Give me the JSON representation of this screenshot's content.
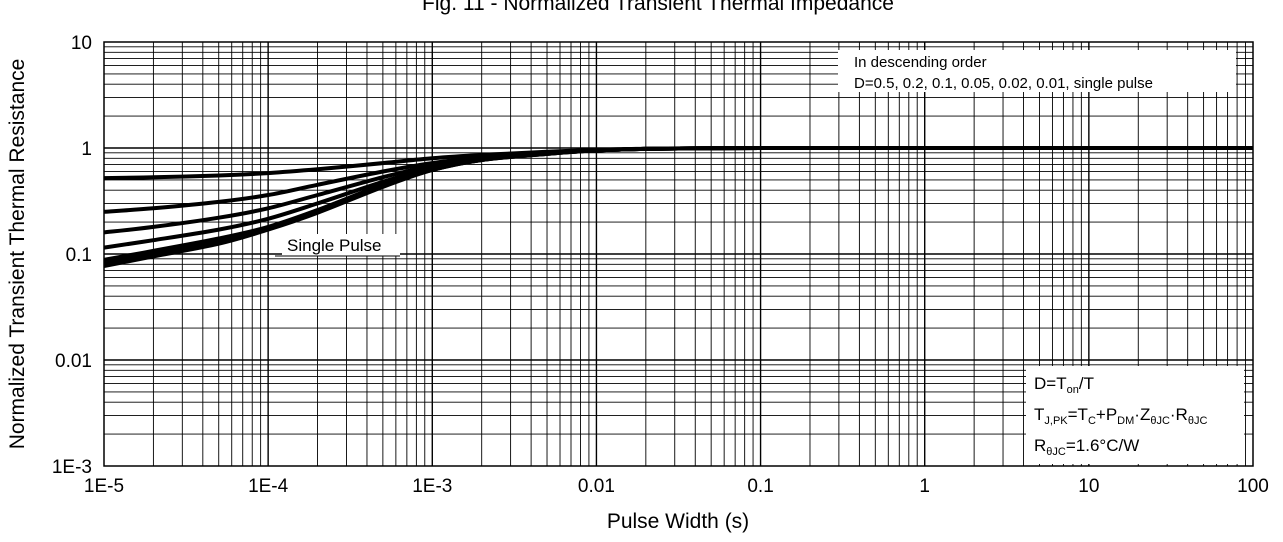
{
  "chart_data": {
    "type": "line",
    "title": "Fig. 11 - Normalized Transient Thermal Impedance",
    "xlabel": "Pulse Width (s)",
    "ylabel": "Normalized Transient Thermal Resistance",
    "x_scale": "log",
    "y_scale": "log",
    "xlim": [
      1e-05,
      100
    ],
    "ylim": [
      0.001,
      10
    ],
    "x_tick_labels": [
      "1E-5",
      "1E-4",
      "1E-3",
      "0.01",
      "0.1",
      "1",
      "10",
      "100"
    ],
    "y_tick_labels": [
      "10",
      "1",
      "0.1",
      "0.01",
      "1E-3"
    ],
    "grid": true,
    "x": [
      1e-05,
      2e-05,
      5e-05,
      0.0001,
      0.0002,
      0.0005,
      0.001,
      0.002,
      0.005,
      0.01,
      0.02,
      0.05,
      0.1,
      1,
      10,
      100
    ],
    "series": [
      {
        "values": [
          0.52,
          0.53,
          0.55,
          0.58,
          0.63,
          0.72,
          0.8,
          0.86,
          0.92,
          0.96,
          0.985,
          0.995,
          1.0,
          1.0,
          1.0,
          1.0
        ]
      },
      {
        "values": [
          0.25,
          0.27,
          0.31,
          0.36,
          0.45,
          0.6,
          0.72,
          0.82,
          0.9,
          0.95,
          0.98,
          0.995,
          1.0,
          1.0,
          1.0,
          1.0
        ]
      },
      {
        "values": [
          0.16,
          0.18,
          0.22,
          0.27,
          0.36,
          0.53,
          0.68,
          0.8,
          0.89,
          0.95,
          0.98,
          0.995,
          1.0,
          1.0,
          1.0,
          1.0
        ]
      },
      {
        "values": [
          0.115,
          0.135,
          0.17,
          0.215,
          0.3,
          0.48,
          0.65,
          0.78,
          0.89,
          0.95,
          0.98,
          0.995,
          1.0,
          1.0,
          1.0,
          1.0
        ]
      },
      {
        "values": [
          0.088,
          0.107,
          0.14,
          0.18,
          0.26,
          0.45,
          0.63,
          0.77,
          0.88,
          0.95,
          0.98,
          0.995,
          1.0,
          1.0,
          1.0,
          1.0
        ]
      },
      {
        "values": [
          0.081,
          0.1,
          0.13,
          0.175,
          0.25,
          0.44,
          0.62,
          0.77,
          0.88,
          0.95,
          0.98,
          0.995,
          1.0,
          1.0,
          1.0,
          1.0
        ]
      },
      {
        "name": "Single Pulse",
        "values": [
          0.077,
          0.095,
          0.125,
          0.17,
          0.245,
          0.43,
          0.62,
          0.77,
          0.88,
          0.95,
          0.98,
          0.995,
          1.0,
          1.0,
          1.0,
          1.0
        ]
      }
    ],
    "annotations": {
      "order_line1": "In descending order",
      "order_line2": "D=0.5, 0.2, 0.1, 0.05, 0.02, 0.01, single pulse",
      "single_pulse_label": "Single Pulse",
      "duty_formula": {
        "base": "D=T",
        "sub": "on",
        "tail": "/T"
      },
      "tj_formula": {
        "t": "T",
        "sub_jpk": "J,PK",
        "eq_tc": "=T",
        "sub_c": "C",
        "plus_p": "+P",
        "sub_dm": "DM",
        "dot_z": "·Z",
        "sub_thjc": "θJC",
        "dot_r": "·R",
        "sub_thjc2": "θJC"
      },
      "rth_formula": {
        "r": "R",
        "sub": "θJC",
        "value": "=1.6°C/W"
      }
    },
    "colors": {
      "line": "#000000",
      "grid": "#000000",
      "background": "#ffffff"
    }
  }
}
